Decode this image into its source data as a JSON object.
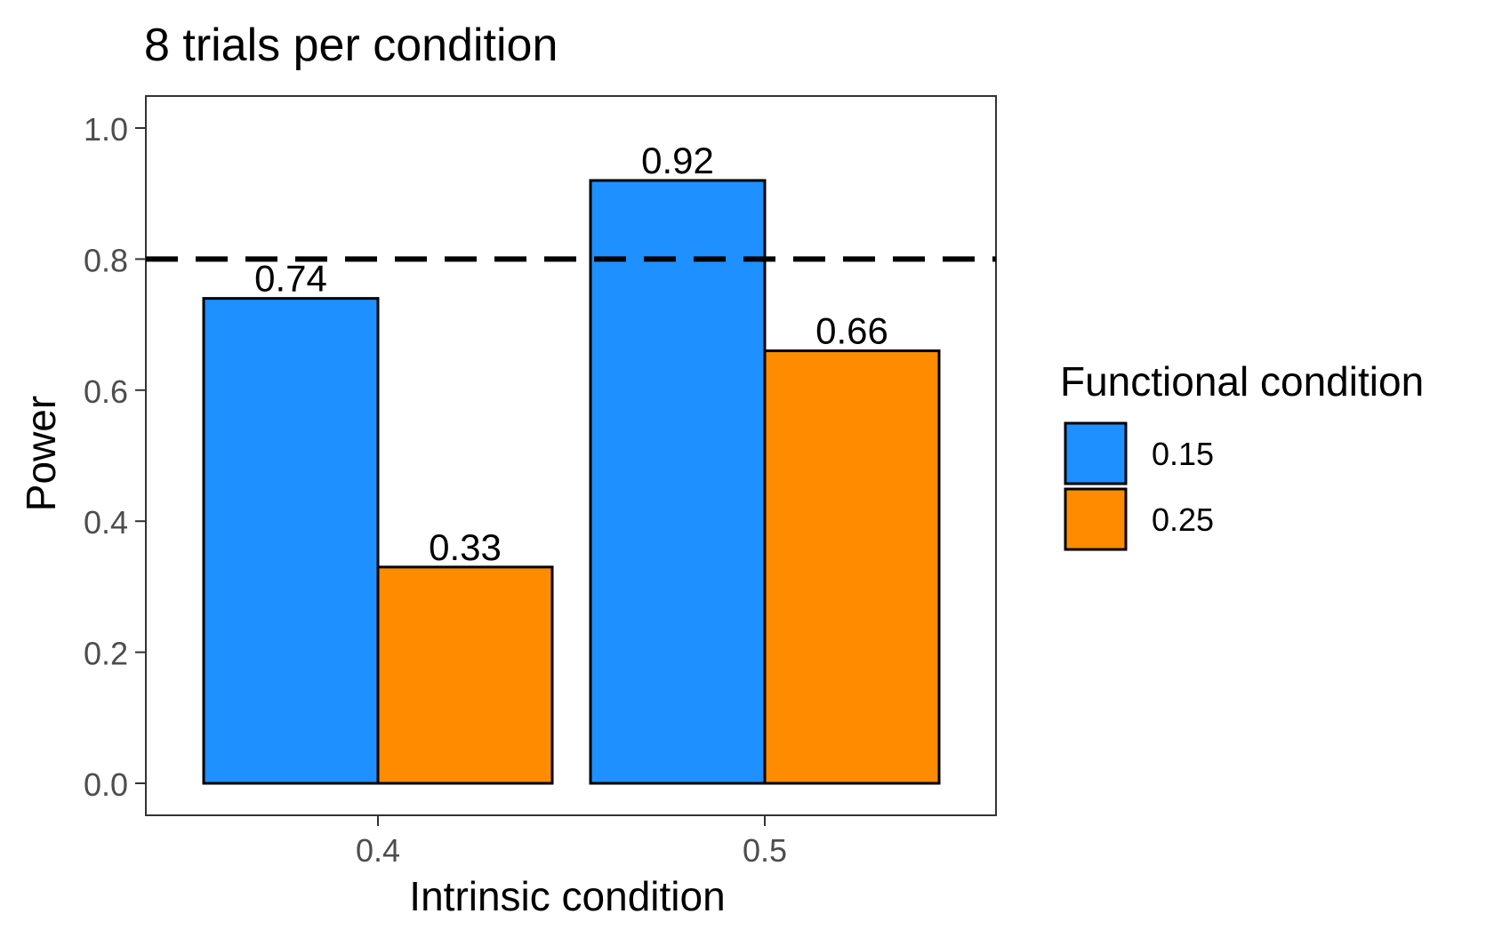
{
  "chart_data": {
    "type": "bar",
    "title": "8 trials per condition",
    "xlabel": "Intrinsic condition",
    "ylabel": "Power",
    "categories": [
      "0.4",
      "0.5"
    ],
    "legend_title": "Functional condition",
    "legend_position": "right",
    "series": [
      {
        "name": "0.15",
        "color": "#1E90FF",
        "values": [
          0.74,
          0.92
        ],
        "labels": [
          "0.74",
          "0.92"
        ]
      },
      {
        "name": "0.25",
        "color": "#FF8C00",
        "values": [
          0.33,
          0.66
        ],
        "labels": [
          "0.33",
          "0.66"
        ]
      }
    ],
    "ylim": [
      0,
      1.05
    ],
    "yticks": [
      0.0,
      0.2,
      0.4,
      0.6,
      0.8,
      1.0
    ],
    "ytick_labels": [
      "0.0",
      "0.2",
      "0.4",
      "0.6",
      "0.8",
      "1.0"
    ],
    "reference_line": {
      "y": 0.8,
      "style": "dashed",
      "color": "#000000"
    },
    "grid": false
  }
}
